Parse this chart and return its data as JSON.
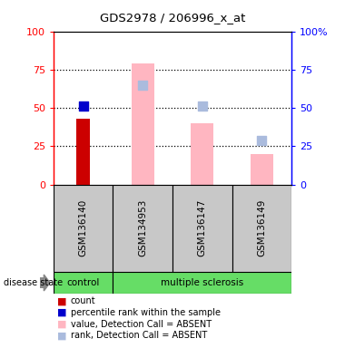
{
  "title": "GDS2978 / 206996_x_at",
  "samples": [
    "GSM136140",
    "GSM134953",
    "GSM136147",
    "GSM136149"
  ],
  "count_values": [
    43,
    null,
    null,
    null
  ],
  "percentile_rank_values": [
    51,
    null,
    null,
    null
  ],
  "value_absent": [
    null,
    79,
    40,
    20
  ],
  "rank_absent": [
    null,
    65,
    51,
    29
  ],
  "ylim": [
    0,
    100
  ],
  "yticks": [
    0,
    25,
    50,
    75,
    100
  ],
  "colors": {
    "count": "#CC0000",
    "percentile_rank": "#0000CC",
    "value_absent": "#FFB6C1",
    "rank_absent": "#AABBDD",
    "control_bg": "#66DD66",
    "ms_bg": "#66DD66",
    "sample_bg": "#C8C8C8",
    "white": "#FFFFFF",
    "black": "#000000"
  },
  "legend_labels": [
    "count",
    "percentile rank within the sample",
    "value, Detection Call = ABSENT",
    "rank, Detection Call = ABSENT"
  ],
  "legend_colors": [
    "#CC0000",
    "#0000CC",
    "#FFB6C1",
    "#AABBDD"
  ]
}
